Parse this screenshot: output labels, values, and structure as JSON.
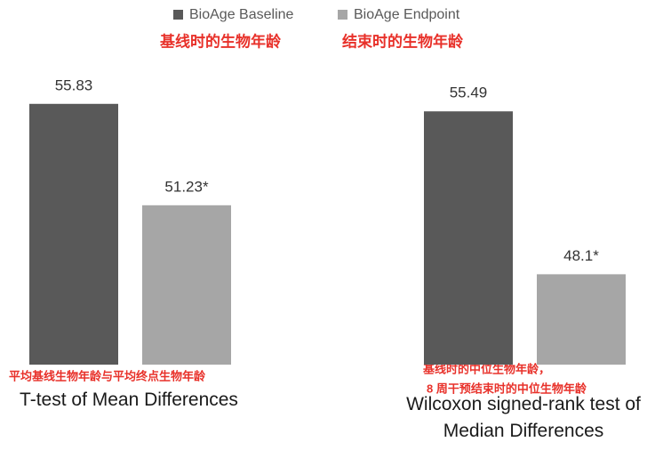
{
  "chart_data": {
    "type": "bar",
    "categories": [
      "T-test of Mean Differences",
      "Wilcoxon signed-rank test of Median Differences"
    ],
    "series": [
      {
        "name": "BioAge Baseline",
        "color": "#595959",
        "values": [
          55.83,
          55.49
        ],
        "value_labels": [
          "55.83",
          "55.49"
        ]
      },
      {
        "name": "BioAge Endpoint",
        "color": "#a6a6a6",
        "values": [
          51.23,
          48.1
        ],
        "value_labels": [
          "51.23*",
          "48.1*"
        ]
      }
    ],
    "ylim": [
      44,
      58
    ],
    "legend": "top",
    "annotations": [
      "基线时的生物年龄",
      "结束时的生物年龄",
      "平均基线生物年龄与平均终点生物年龄",
      "基线时的中位生物年龄，",
      "8 周干预结束时的中位生物年龄"
    ],
    "annotation_color": "#e8312a"
  }
}
